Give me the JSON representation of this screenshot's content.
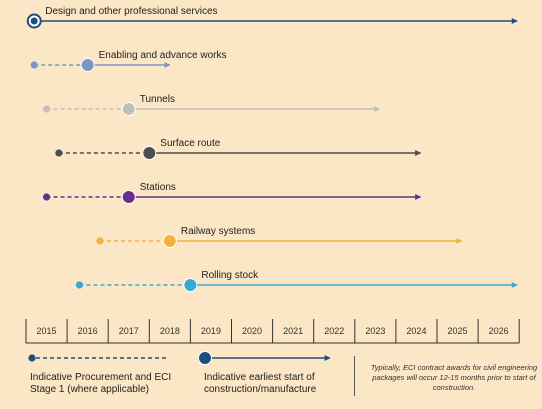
{
  "timeline": {
    "years": [
      "2015",
      "2016",
      "2017",
      "2018",
      "2019",
      "2020",
      "2021",
      "2022",
      "2023",
      "2024",
      "2025",
      "2026"
    ],
    "rows": [
      {
        "label": "Design and other professional services",
        "color": "#1f4e7e",
        "proc_start": 2015.2,
        "start": 2015.2,
        "end": 2026.95,
        "big_dot_ring": true
      },
      {
        "label": "Enabling and advance works",
        "color": "#7c96c4",
        "proc_start": 2015.2,
        "start": 2016.5,
        "end": 2018.5
      },
      {
        "label": "Tunnels",
        "color": "#c2c0b6",
        "proc_start": 2015.5,
        "start": 2017.5,
        "end": 2023.6
      },
      {
        "label": "Surface route",
        "color": "#4d4d4d",
        "proc_start": 2015.8,
        "start": 2018.0,
        "end": 2024.6
      },
      {
        "label": "Stations",
        "color": "#6a2d8c",
        "proc_start": 2015.5,
        "start": 2017.5,
        "end": 2024.6
      },
      {
        "label": "Railway systems",
        "color": "#f2b23f",
        "proc_start": 2016.8,
        "start": 2018.5,
        "end": 2025.6
      },
      {
        "label": "Rolling stock",
        "color": "#3aa8d6",
        "proc_start": 2016.3,
        "start": 2019.0,
        "end": 2026.95
      }
    ]
  },
  "legend": {
    "procurement_label": "Indicative Procurement and ECI Stage 1 (where applicable)",
    "procurement_color": "#1f4e7e",
    "construction_label": "Indicative earliest start of construction/manufacture",
    "construction_color": "#1f4e7e",
    "note": "Typically, ECI contract awards for civil engineering packages will occur 12-15 months prior to start of construction."
  }
}
